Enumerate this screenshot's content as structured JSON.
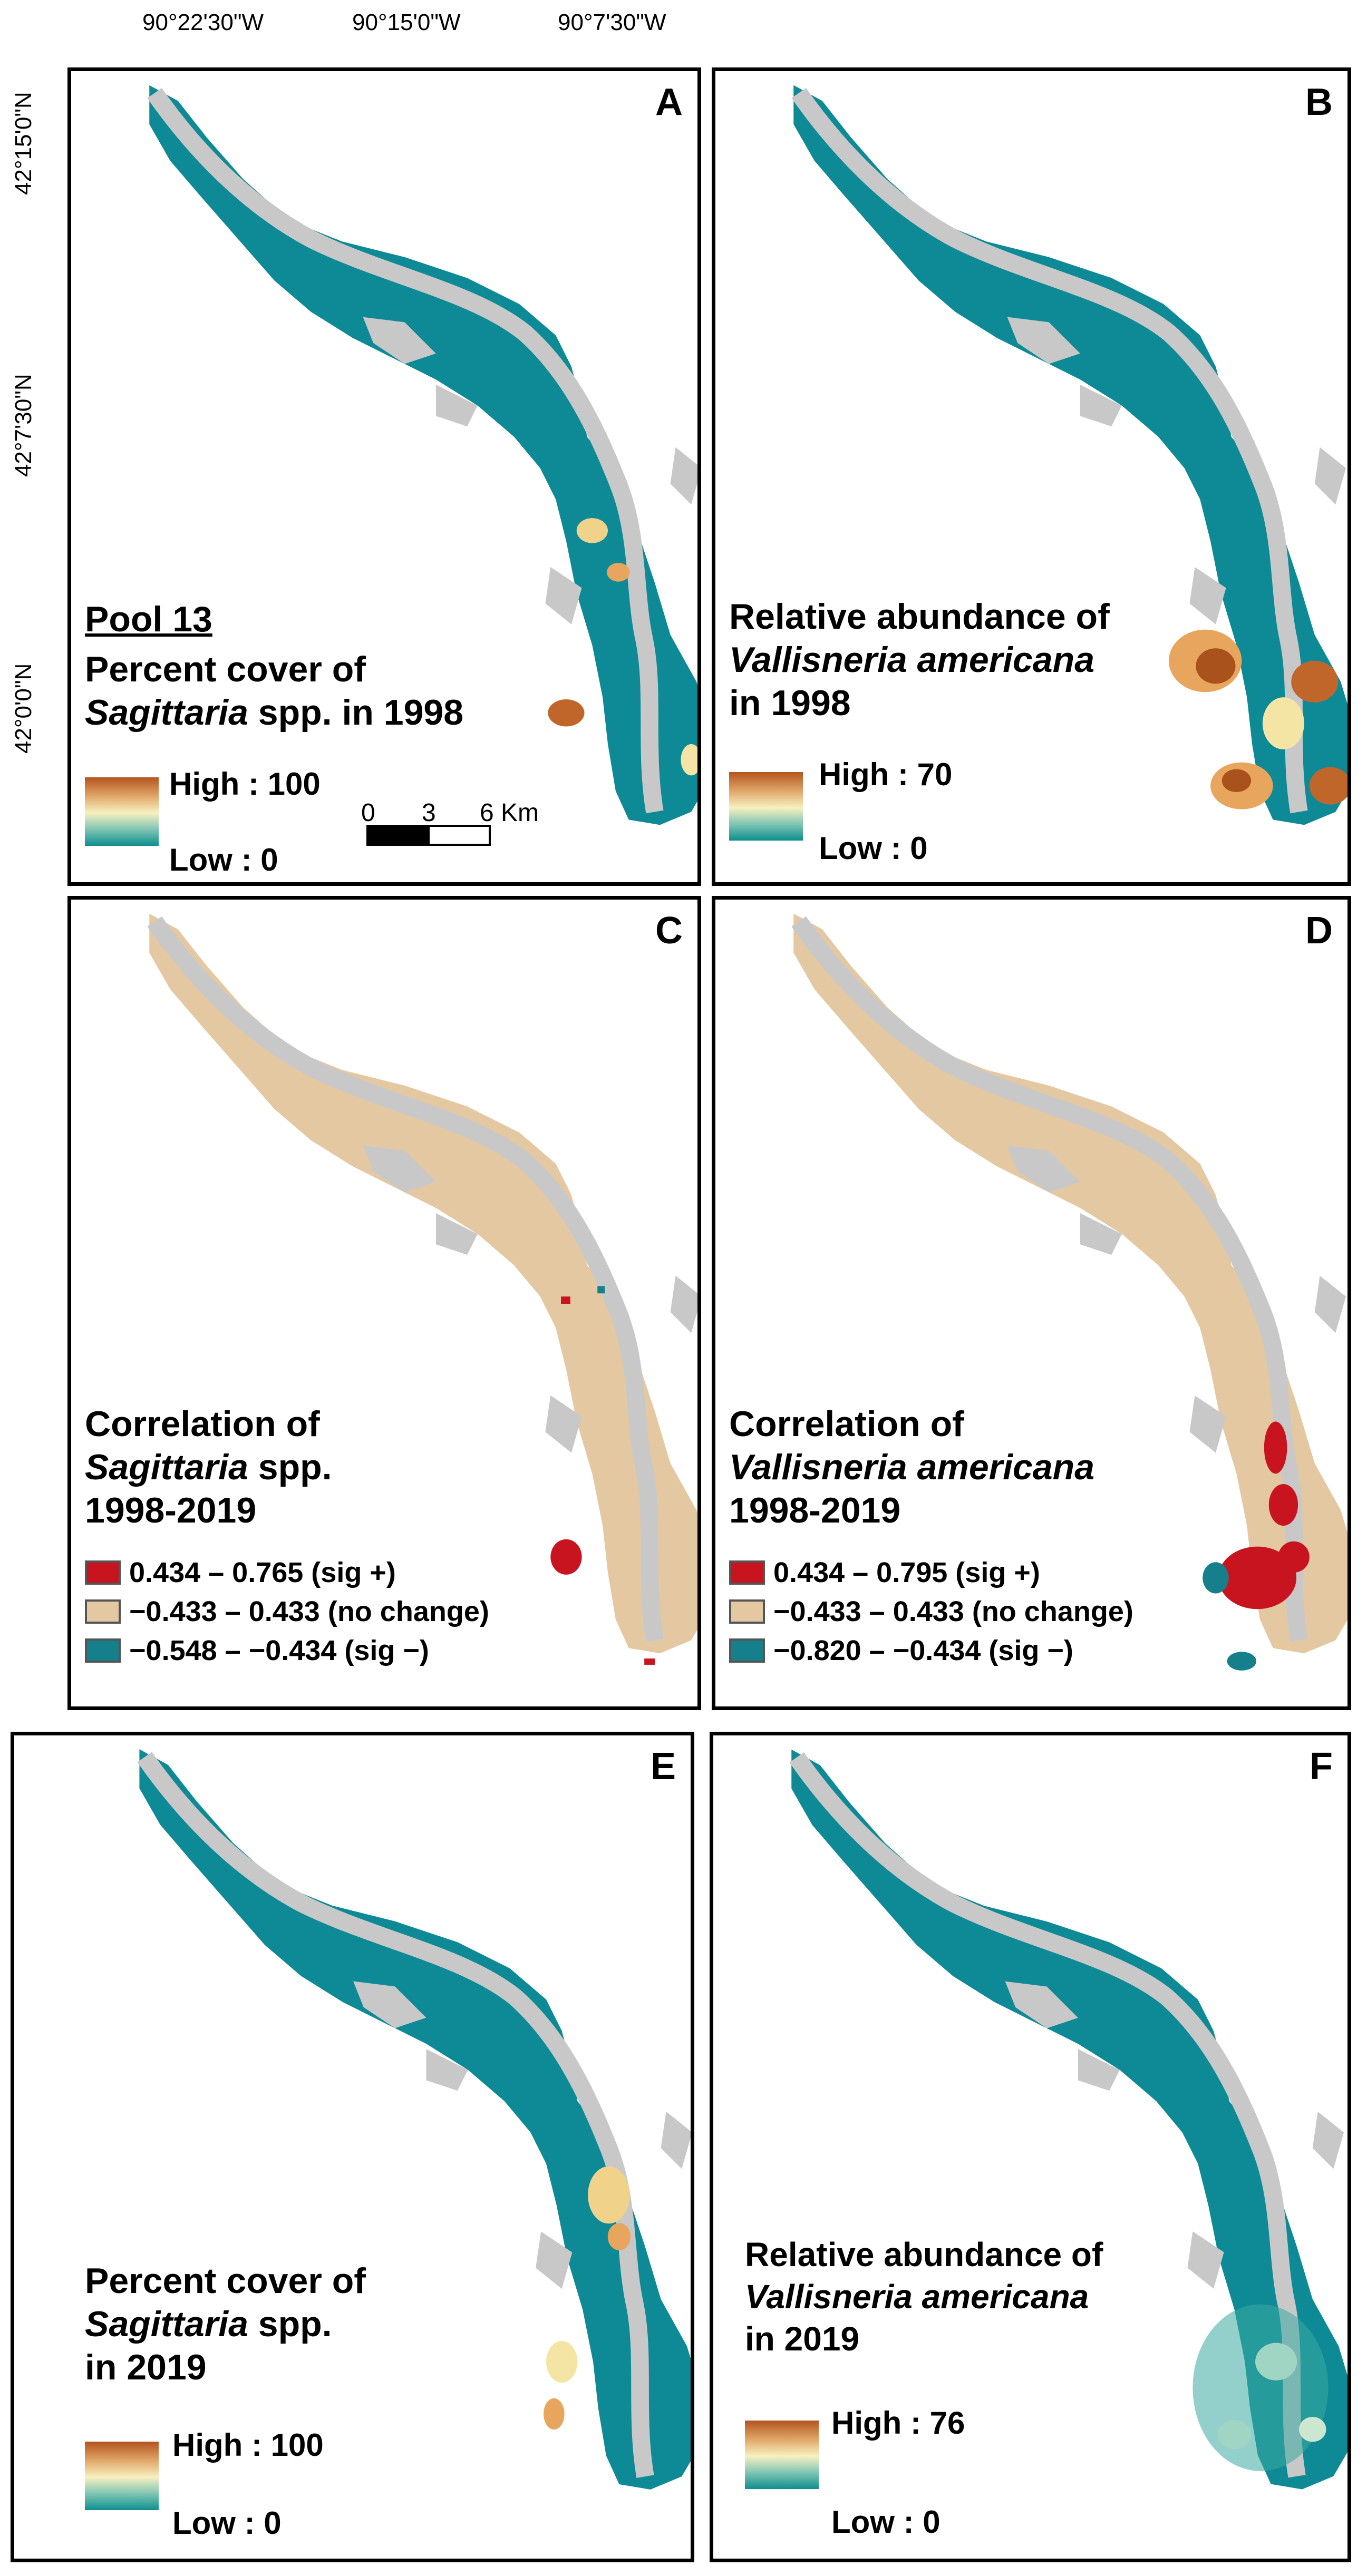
{
  "coordinates": {
    "top_ticks": [
      "90°22'30\"W",
      "90°15'0\"W",
      "90°7'30\"W"
    ],
    "left_ticks": [
      "42°15'0\"N",
      "42°7'30\"N",
      "42°0'0\"N"
    ]
  },
  "colors": {
    "water_teal": "#0d8a95",
    "river_gray": "#c8c8c8",
    "no_change_tan": "#e4c8a2",
    "sig_positive_red": "#c8141e",
    "sig_negative_teal": "#167f8c",
    "ramp_high": "#b3541e",
    "ramp_low": "#0d8f8f"
  },
  "panels": {
    "A": {
      "label": "A",
      "pool": "Pool 13",
      "title_line1": "Percent cover of",
      "title_italic": "Sagittaria",
      "title_rest": " spp.  in 1998",
      "high": "High : 100",
      "low": "Low : 0",
      "scale": {
        "t0": "0",
        "t1": "3",
        "t2": "6 Km"
      }
    },
    "B": {
      "label": "B",
      "title_line1": "Relative abundance of",
      "title_italic": "Vallisneria americana",
      "title_line3": "in 1998",
      "high": "High : 70",
      "low": "Low : 0"
    },
    "C": {
      "label": "C",
      "title_line1": "Correlation of",
      "title_italic": "Sagittaria",
      "title_rest": " spp.",
      "title_line3": "1998-2019",
      "legend": [
        "0.434 – 0.765 (sig +)",
        "−0.433 – 0.433 (no change)",
        "−0.548 – −0.434 (sig −)"
      ]
    },
    "D": {
      "label": "D",
      "title_line1": "Correlation of",
      "title_italic": "Vallisneria americana",
      "title_line3": "1998-2019",
      "legend": [
        "0.434 – 0.795 (sig +)",
        "−0.433 – 0.433 (no change)",
        "−0.820 – −0.434 (sig −)"
      ]
    },
    "E": {
      "label": "E",
      "title_line1": "Percent cover of",
      "title_italic": "Sagittaria",
      "title_rest": " spp.",
      "title_line3": "in 2019",
      "high": "High : 100",
      "low": "Low : 0"
    },
    "F": {
      "label": "F",
      "title_line1": "Relative abundance of",
      "title_italic": "Vallisneria americana",
      "title_line3": "in 2019",
      "high": "High : 76",
      "low": "Low : 0"
    }
  }
}
